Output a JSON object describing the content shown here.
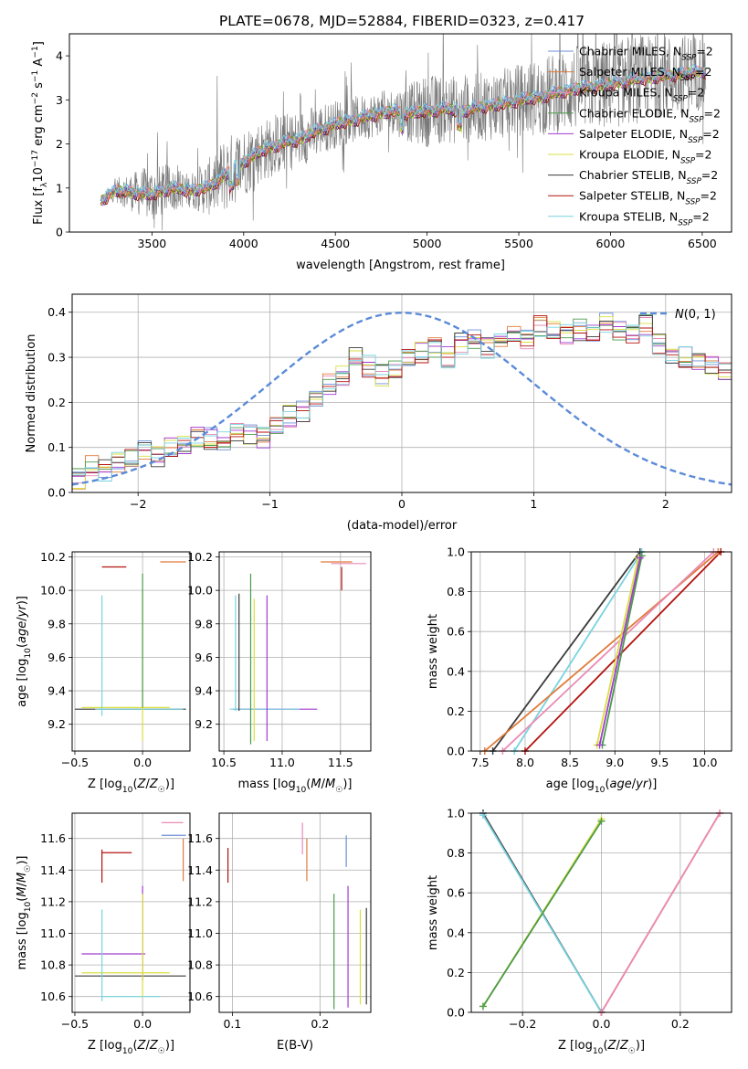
{
  "title": "PLATE=0678, MJD=52884, FIBERID=0323, z=0.417",
  "colors": {
    "Chabrier MILES": "#6b8fd6",
    "Salpeter MILES": "#e07b39",
    "Kroupa MILES": "#e98bb5",
    "Chabrier ELODIE": "#4b9a4b",
    "Salpeter ELODIE": "#a23bd1",
    "Kroupa ELODIE": "#d9df3f",
    "Chabrier STELIB": "#3a3a3a",
    "Salpeter STELIB": "#b3120f",
    "Kroupa STELIB": "#78d3df",
    "normal": "#5b8bd8",
    "data": "#777777"
  },
  "panels": {
    "spectrum": {
      "xlabel": "wavelength [Angstrom, rest frame]",
      "ylabel": "Flux [f_λ 10^-17 erg cm^-2 s^-1 A^-1]",
      "xticks": [
        "3500",
        "4000",
        "4500",
        "5000",
        "5500",
        "6000",
        "6500"
      ],
      "yticks": [
        "0",
        "1",
        "2",
        "3",
        "4"
      ],
      "legend": [
        "Chabrier MILES, N_SSP=2",
        "Salpeter MILES, N_SSP=2",
        "Kroupa MILES, N_SSP=2",
        "Chabrier ELODIE, N_SSP=2",
        "Salpeter ELODIE, N_SSP=2",
        "Kroupa ELODIE, N_SSP=2",
        "Chabrier STELIB, N_SSP=2",
        "Salpeter STELIB, N_SSP=2",
        "Kroupa STELIB, N_SSP=2"
      ]
    },
    "histogram": {
      "xlabel": "(data-model)/error",
      "ylabel": "Normed distribution",
      "xticks": [
        "−2",
        "−1",
        "0",
        "1",
        "2"
      ],
      "yticks": [
        "0.0",
        "0.1",
        "0.2",
        "0.3",
        "0.4"
      ],
      "legend": "N(0,1)"
    },
    "age_vs_Z": {
      "xlabel": "Z [log10(Z/Z☉)]",
      "ylabel": "age [log10(age/yr)]",
      "xticks": [
        "−0.5",
        "0.0"
      ],
      "yticks": [
        "9.2",
        "9.4",
        "9.6",
        "9.8",
        "10.0",
        "10.2"
      ]
    },
    "age_vs_mass": {
      "xlabel": "mass [log10(M/M☉)]",
      "xticks": [
        "10.5",
        "11.0",
        "11.5"
      ],
      "yticks": [
        "9.2",
        "9.4",
        "9.6",
        "9.8",
        "10.0",
        "10.2"
      ]
    },
    "mass_weight_vs_age": {
      "xlabel": "age [log10(age/yr)]",
      "ylabel": "mass weight",
      "xticks": [
        "7.5",
        "8.0",
        "8.5",
        "9.0",
        "9.5",
        "10.0"
      ],
      "yticks": [
        "0.0",
        "0.2",
        "0.4",
        "0.6",
        "0.8",
        "1.0"
      ]
    },
    "mass_vs_Z": {
      "xlabel": "Z [log10(Z/Z☉)]",
      "ylabel": "mass [log10(M/M☉)]",
      "xticks": [
        "−0.5",
        "0.0"
      ],
      "yticks": [
        "10.6",
        "10.8",
        "11.0",
        "11.2",
        "11.4",
        "11.6"
      ]
    },
    "mass_vs_EBV": {
      "xlabel": "E(B-V)",
      "xticks": [
        "0.1",
        "0.2"
      ],
      "yticks": [
        "10.6",
        "10.8",
        "11.0",
        "11.2",
        "11.4",
        "11.6"
      ]
    },
    "mass_weight_vs_Z": {
      "xlabel": "Z [log10(Z/Z☉)]",
      "ylabel": "mass weight",
      "xticks": [
        "−0.2",
        "0.0",
        "0.2"
      ],
      "yticks": [
        "0.0",
        "0.2",
        "0.4",
        "0.6",
        "0.8",
        "1.0"
      ]
    }
  },
  "chart_data": [
    {
      "type": "line",
      "title": "PLATE=0678, MJD=52884, FIBERID=0323, z=0.417",
      "xlabel": "wavelength [Angstrom, rest frame]",
      "ylabel": "Flux [f_λ 10^-17 erg cm^-2 s^-1 A^-1]",
      "xlim": [
        3050,
        6660
      ],
      "ylim": [
        0,
        4.5
      ],
      "model_continuum": [
        [
          3220,
          0.7
        ],
        [
          3300,
          0.95
        ],
        [
          3400,
          0.9
        ],
        [
          3500,
          0.85
        ],
        [
          3600,
          1.0
        ],
        [
          3700,
          0.95
        ],
        [
          3800,
          1.0
        ],
        [
          3900,
          1.3
        ],
        [
          4000,
          1.6
        ],
        [
          4100,
          1.85
        ],
        [
          4200,
          2.0
        ],
        [
          4300,
          2.1
        ],
        [
          4400,
          2.3
        ],
        [
          4500,
          2.45
        ],
        [
          4600,
          2.55
        ],
        [
          4700,
          2.65
        ],
        [
          4800,
          2.75
        ],
        [
          4900,
          2.7
        ],
        [
          5000,
          2.75
        ],
        [
          5100,
          2.8
        ],
        [
          5200,
          2.75
        ],
        [
          5300,
          2.85
        ],
        [
          5400,
          2.9
        ],
        [
          5500,
          3.0
        ],
        [
          5600,
          3.05
        ],
        [
          5700,
          3.15
        ],
        [
          5800,
          3.25
        ],
        [
          5900,
          3.3
        ],
        [
          6000,
          3.35
        ],
        [
          6100,
          3.45
        ],
        [
          6200,
          3.5
        ],
        [
          6300,
          3.55
        ],
        [
          6400,
          3.6
        ],
        [
          6500,
          3.65
        ]
      ],
      "data_noise_amplitude": [
        [
          3220,
          0.2
        ],
        [
          3500,
          1.2
        ],
        [
          3700,
          0.7
        ],
        [
          3900,
          1.6
        ],
        [
          4100,
          1.3
        ],
        [
          4300,
          1.2
        ],
        [
          4500,
          1.0
        ],
        [
          4800,
          0.9
        ],
        [
          5000,
          1.5
        ],
        [
          5200,
          1.4
        ],
        [
          5500,
          1.5
        ],
        [
          5800,
          1.8
        ],
        [
          6100,
          1.9
        ],
        [
          6300,
          1.7
        ],
        [
          6500,
          1.6
        ]
      ],
      "series": [
        "Chabrier MILES, N_SSP=2",
        "Salpeter MILES, N_SSP=2",
        "Kroupa MILES, N_SSP=2",
        "Chabrier ELODIE, N_SSP=2",
        "Salpeter ELODIE, N_SSP=2",
        "Kroupa ELODIE, N_SSP=2",
        "Chabrier STELIB, N_SSP=2",
        "Salpeter STELIB, N_SSP=2",
        "Kroupa STELIB, N_SSP=2"
      ]
    },
    {
      "type": "line",
      "xlabel": "(data-model)/error",
      "ylabel": "Normed distribution",
      "xlim": [
        -2.5,
        2.5
      ],
      "ylim": [
        0,
        0.44
      ],
      "bin_edges_start": -2.5,
      "bin_width": 0.1,
      "histogram_envelope": [
        0.03,
        0.06,
        0.05,
        0.07,
        0.08,
        0.09,
        0.08,
        0.1,
        0.1,
        0.12,
        0.12,
        0.11,
        0.13,
        0.13,
        0.12,
        0.15,
        0.17,
        0.18,
        0.21,
        0.24,
        0.26,
        0.3,
        0.28,
        0.26,
        0.27,
        0.3,
        0.31,
        0.32,
        0.3,
        0.33,
        0.34,
        0.32,
        0.33,
        0.35,
        0.34,
        0.37,
        0.36,
        0.35,
        0.36,
        0.35,
        0.38,
        0.36,
        0.35,
        0.37,
        0.33,
        0.31,
        0.3,
        0.29,
        0.28,
        0.27,
        0.29,
        0.25,
        0.27,
        0.26,
        0.22,
        0.23,
        0.2,
        0.21,
        0.2,
        0.19,
        0.19,
        0.18,
        0.14,
        0.15,
        0.13,
        0.15,
        0.12,
        0.11,
        0.12,
        0.1,
        0.09,
        0.1,
        0.08,
        0.08,
        0.07,
        0.08,
        0.06,
        0.06,
        0.05,
        0.06,
        0.05,
        0.05,
        0.04,
        0.05,
        0.04,
        0.05,
        0.04,
        0.05,
        0.04,
        0.05,
        0.04,
        0.04,
        0.05,
        0.04,
        0.04,
        0.05,
        0.04,
        0.05,
        0.04,
        0.05
      ],
      "series": [
        {
          "name": "N(0,1)",
          "mean": 0,
          "sigma": 1
        }
      ]
    },
    {
      "type": "scatter",
      "xlabel": "Z [log10(Z/Z☉)]",
      "ylabel": "age [log10(age/yr)]",
      "xlim": [
        -0.52,
        0.35
      ],
      "ylim": [
        9.04,
        10.23
      ],
      "vertical_lines": [
        {
          "x": -0.3,
          "y": [
            9.25,
            9.97
          ],
          "color": "Kroupa STELIB"
        },
        {
          "x": 0.0,
          "y": [
            9.1,
            10.0
          ],
          "color": "Kroupa ELODIE"
        },
        {
          "x": 0.0,
          "y": [
            9.3,
            10.1
          ],
          "color": "Chabrier ELODIE"
        }
      ],
      "horizontal_lines": [
        {
          "y": 9.29,
          "x": [
            -0.5,
            0.32
          ],
          "color": "Chabrier STELIB"
        },
        {
          "y": 9.3,
          "x": [
            -0.45,
            0.2
          ],
          "color": "Kroupa ELODIE"
        },
        {
          "y": 9.29,
          "x": [
            -0.35,
            0.3
          ],
          "color": "Kroupa STELIB"
        },
        {
          "y": 10.14,
          "x": [
            -0.3,
            -0.12
          ],
          "color": "Salpeter STELIB"
        },
        {
          "y": 10.17,
          "x": [
            0.13,
            0.32
          ],
          "color": "Salpeter MILES"
        }
      ]
    },
    {
      "type": "scatter",
      "xlabel": "mass [log10(M/M☉)]",
      "xlim": [
        10.46,
        11.76
      ],
      "ylim": [
        9.04,
        10.23
      ],
      "vertical_lines": [
        {
          "x": 10.6,
          "y": [
            9.28,
            9.97
          ],
          "color": "Kroupa STELIB"
        },
        {
          "x": 10.63,
          "y": [
            9.28,
            9.98
          ],
          "color": "Chabrier STELIB"
        },
        {
          "x": 10.73,
          "y": [
            9.08,
            10.1
          ],
          "color": "Chabrier ELODIE"
        },
        {
          "x": 10.76,
          "y": [
            9.1,
            9.95
          ],
          "color": "Kroupa ELODIE"
        },
        {
          "x": 10.87,
          "y": [
            9.1,
            9.97
          ],
          "color": "Salpeter ELODIE"
        },
        {
          "x": 11.51,
          "y": [
            10.0,
            10.14
          ],
          "color": "Salpeter STELIB"
        }
      ],
      "horizontal_lines": [
        {
          "y": 9.29,
          "x": [
            10.58,
            11.3
          ],
          "color": "Salpeter ELODIE"
        },
        {
          "y": 9.29,
          "x": [
            10.55,
            11.15
          ],
          "color": "Kroupa STELIB"
        },
        {
          "y": 10.17,
          "x": [
            11.33,
            11.6
          ],
          "color": "Salpeter MILES"
        },
        {
          "y": 10.16,
          "x": [
            11.42,
            11.72
          ],
          "color": "Kroupa MILES"
        }
      ]
    },
    {
      "type": "line",
      "xlabel": "age [log10(age/yr)]",
      "ylabel": "mass weight",
      "xlim": [
        7.4,
        10.3
      ],
      "ylim": [
        0,
        1
      ],
      "series": [
        {
          "name": "Chabrier STELIB",
          "x": [
            7.64,
            9.28
          ],
          "y": [
            0.0,
            1.0
          ]
        },
        {
          "name": "Kroupa STELIB",
          "x": [
            7.88,
            9.3
          ],
          "y": [
            0.0,
            1.0
          ]
        },
        {
          "name": "Salpeter MILES",
          "x": [
            7.55,
            10.15
          ],
          "y": [
            0.0,
            1.0
          ]
        },
        {
          "name": "Kroupa MILES",
          "x": [
            7.75,
            10.1
          ],
          "y": [
            0.0,
            1.0
          ]
        },
        {
          "name": "Salpeter STELIB",
          "x": [
            8.0,
            10.18
          ],
          "y": [
            0.0,
            1.0
          ]
        },
        {
          "name": "Chabrier ELODIE",
          "x": [
            8.86,
            9.3
          ],
          "y": [
            0.03,
            0.98
          ]
        },
        {
          "name": "Kroupa ELODIE",
          "x": [
            8.8,
            9.26
          ],
          "y": [
            0.03,
            0.97
          ]
        },
        {
          "name": "Salpeter ELODIE",
          "x": [
            8.83,
            9.28
          ],
          "y": [
            0.03,
            0.97
          ]
        }
      ]
    },
    {
      "type": "scatter",
      "xlabel": "Z [log10(Z/Z☉)]",
      "ylabel": "mass [log10(M/M☉)]",
      "xlim": [
        -0.52,
        0.35
      ],
      "ylim": [
        10.5,
        11.76
      ],
      "vertical_lines": [
        {
          "x": -0.3,
          "y": [
            10.57,
            11.15
          ],
          "color": "Kroupa STELIB"
        },
        {
          "x": 0.0,
          "y": [
            10.7,
            11.3
          ],
          "color": "Salpeter ELODIE"
        },
        {
          "x": 0.0,
          "y": [
            10.6,
            11.25
          ],
          "color": "Kroupa ELODIE"
        },
        {
          "x": -0.3,
          "y": [
            11.32,
            11.53
          ],
          "color": "Salpeter STELIB"
        },
        {
          "x": 0.3,
          "y": [
            11.33,
            11.6
          ],
          "color": "Salpeter MILES"
        }
      ],
      "horizontal_lines": [
        {
          "y": 10.87,
          "x": [
            -0.45,
            0.02
          ],
          "color": "Salpeter ELODIE"
        },
        {
          "y": 10.75,
          "x": [
            -0.45,
            0.2
          ],
          "color": "Kroupa ELODIE"
        },
        {
          "y": 10.73,
          "x": [
            -0.5,
            0.32
          ],
          "color": "Chabrier STELIB"
        },
        {
          "y": 10.6,
          "x": [
            -0.3,
            0.13
          ],
          "color": "Kroupa STELIB"
        },
        {
          "y": 11.51,
          "x": [
            -0.3,
            -0.08
          ],
          "color": "Salpeter STELIB"
        },
        {
          "y": 11.62,
          "x": [
            0.14,
            0.32
          ],
          "color": "Chabrier MILES"
        },
        {
          "y": 11.7,
          "x": [
            0.14,
            0.3
          ],
          "color": "Kroupa MILES"
        }
      ]
    },
    {
      "type": "scatter",
      "xlabel": "E(B-V)",
      "xlim": [
        0.085,
        0.258
      ],
      "ylim": [
        10.5,
        11.76
      ],
      "vertical_lines": [
        {
          "x": 0.095,
          "y": [
            11.32,
            11.54
          ],
          "color": "Salpeter STELIB"
        },
        {
          "x": 0.18,
          "y": [
            11.5,
            11.7
          ],
          "color": "Kroupa MILES"
        },
        {
          "x": 0.185,
          "y": [
            11.33,
            11.6
          ],
          "color": "Salpeter MILES"
        },
        {
          "x": 0.216,
          "y": [
            10.52,
            11.25
          ],
          "color": "Chabrier ELODIE"
        },
        {
          "x": 0.23,
          "y": [
            11.42,
            11.62
          ],
          "color": "Chabrier MILES"
        },
        {
          "x": 0.232,
          "y": [
            10.53,
            11.3
          ],
          "color": "Salpeter ELODIE"
        },
        {
          "x": 0.246,
          "y": [
            10.55,
            11.15
          ],
          "color": "Kroupa ELODIE"
        },
        {
          "x": 0.253,
          "y": [
            10.55,
            11.16
          ],
          "color": "Chabrier STELIB"
        }
      ]
    },
    {
      "type": "line",
      "xlabel": "Z [log10(Z/Z☉)]",
      "ylabel": "mass weight",
      "xlim": [
        -0.33,
        0.33
      ],
      "ylim": [
        0,
        1
      ],
      "series": [
        {
          "name": "Chabrier STELIB",
          "x": [
            -0.3,
            0.0
          ],
          "y": [
            1.0,
            0.0
          ]
        },
        {
          "name": "Kroupa STELIB",
          "x": [
            -0.3,
            0.0
          ],
          "y": [
            0.99,
            0.0
          ]
        },
        {
          "name": "Kroupa ELODIE",
          "x": [
            -0.3,
            0.0
          ],
          "y": [
            0.03,
            0.97
          ]
        },
        {
          "name": "Chabrier ELODIE",
          "x": [
            -0.3,
            0.0
          ],
          "y": [
            0.03,
            0.96
          ]
        },
        {
          "name": "Salpeter MILES",
          "x": [
            0.0,
            0.3
          ],
          "y": [
            0.0,
            1.0
          ]
        },
        {
          "name": "Kroupa MILES",
          "x": [
            0.0,
            0.3
          ],
          "y": [
            0.0,
            1.0
          ]
        }
      ]
    }
  ]
}
